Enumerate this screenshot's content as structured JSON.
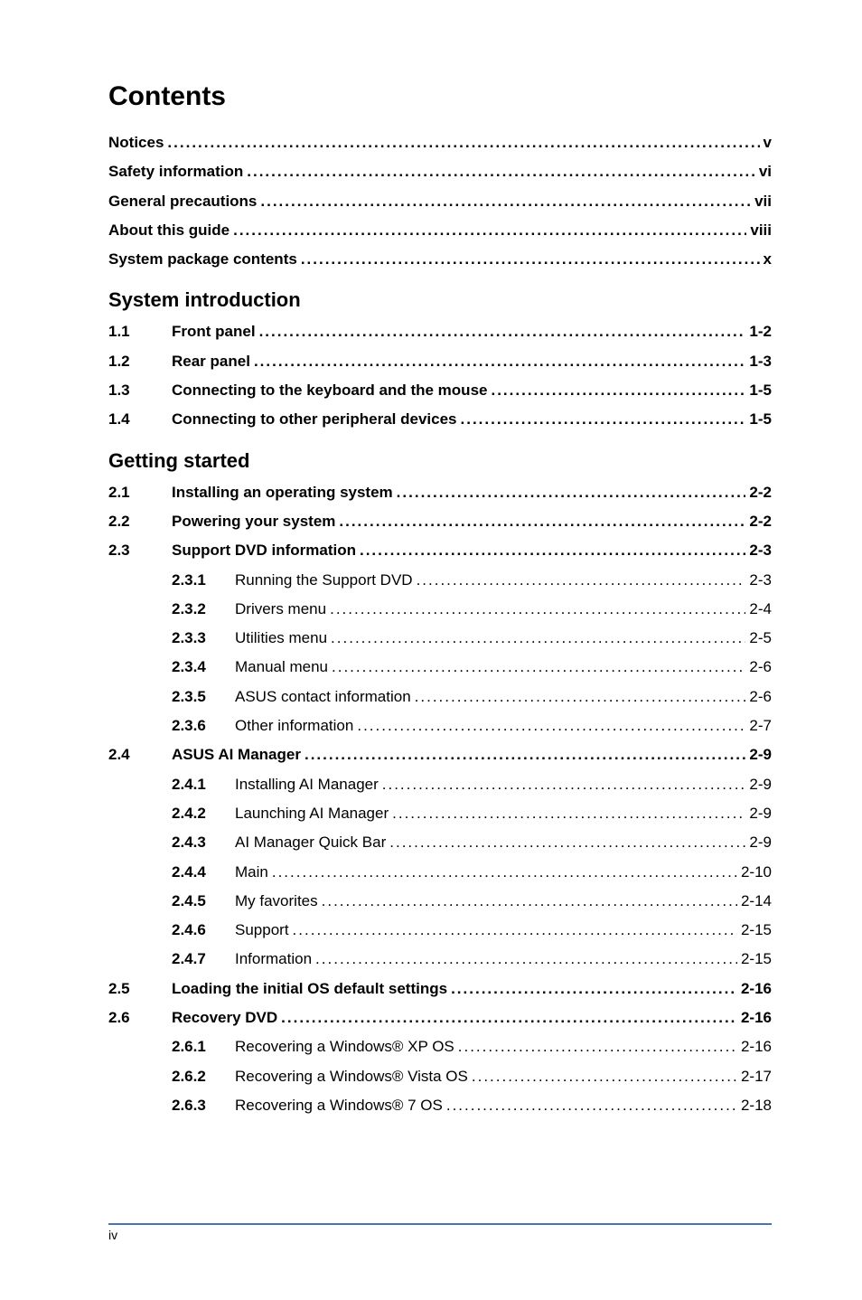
{
  "title": "Contents",
  "front_matter": [
    {
      "label": "Notices",
      "page": "v"
    },
    {
      "label": "Safety information",
      "page": "vi"
    },
    {
      "label": "General precautions",
      "page": "vii"
    },
    {
      "label": "About this guide",
      "page": "viii"
    },
    {
      "label": "System package contents",
      "page": "x"
    }
  ],
  "sections": [
    {
      "heading": "System introduction",
      "entries": [
        {
          "num": "1.1",
          "label": "Front panel",
          "page": "1-2",
          "bold": true
        },
        {
          "num": "1.2",
          "label": "Rear panel",
          "page": "1-3",
          "bold": true
        },
        {
          "num": "1.3",
          "label": "Connecting to the keyboard and the mouse",
          "page": "1-5",
          "bold": true
        },
        {
          "num": "1.4",
          "label": "Connecting to other peripheral devices",
          "page": "1-5",
          "bold": true
        }
      ]
    },
    {
      "heading": "Getting started",
      "entries": [
        {
          "num": "2.1",
          "label": "Installing an operating system",
          "page": "2-2",
          "bold": true
        },
        {
          "num": "2.2",
          "label": "Powering your system",
          "page": "2-2",
          "bold": true
        },
        {
          "num": "2.3",
          "label": "Support DVD information",
          "page": "2-3",
          "bold": true
        },
        {
          "num": "2.3.1",
          "label": "Running the Support DVD",
          "page": "2-3",
          "bold": false,
          "sub": true
        },
        {
          "num": "2.3.2",
          "label": "Drivers menu",
          "page": "2-4",
          "bold": false,
          "sub": true
        },
        {
          "num": "2.3.3",
          "label": "Utilities menu",
          "page": "2-5",
          "bold": false,
          "sub": true
        },
        {
          "num": "2.3.4",
          "label": "Manual menu",
          "page": "2-6",
          "bold": false,
          "sub": true
        },
        {
          "num": "2.3.5",
          "label": "ASUS contact information",
          "page": "2-6",
          "bold": false,
          "sub": true
        },
        {
          "num": "2.3.6",
          "label": "Other information",
          "page": "2-7",
          "bold": false,
          "sub": true
        },
        {
          "num": "2.4",
          "label": "ASUS AI Manager",
          "page": "2-9",
          "bold": true
        },
        {
          "num": "2.4.1",
          "label": "Installing AI Manager",
          "page": "2-9",
          "bold": false,
          "sub": true
        },
        {
          "num": "2.4.2",
          "label": "Launching AI Manager",
          "page": "2-9",
          "bold": false,
          "sub": true
        },
        {
          "num": "2.4.3",
          "label": "AI Manager Quick Bar",
          "page": "2-9",
          "bold": false,
          "sub": true
        },
        {
          "num": "2.4.4",
          "label": "Main",
          "page": "2-10",
          "bold": false,
          "sub": true
        },
        {
          "num": "2.4.5",
          "label": "My favorites",
          "page": "2-14",
          "bold": false,
          "sub": true
        },
        {
          "num": "2.4.6",
          "label": "Support",
          "page": "2-15",
          "bold": false,
          "sub": true
        },
        {
          "num": "2.4.7",
          "label": "Information",
          "page": "2-15",
          "bold": false,
          "sub": true
        },
        {
          "num": "2.5",
          "label": "Loading the initial OS default settings",
          "page": "2-16",
          "bold": true
        },
        {
          "num": "2.6",
          "label": "Recovery DVD",
          "page": "2-16",
          "bold": true
        },
        {
          "num": "2.6.1",
          "label": "Recovering a Windows® XP OS",
          "page": "2-16",
          "bold": false,
          "sub": true
        },
        {
          "num": "2.6.2",
          "label": "Recovering a Windows® Vista OS",
          "page": "2-17",
          "bold": false,
          "sub": true
        },
        {
          "num": "2.6.3",
          "label": "Recovering a Windows® 7 OS",
          "page": "2-18",
          "bold": false,
          "sub": true
        }
      ]
    }
  ],
  "footer": {
    "page_number": "iv",
    "rule_color": "#4a73b0"
  },
  "typography": {
    "title_fontsize": 30,
    "body_fontsize": 17,
    "heading_fontsize": 22,
    "footer_fontsize": 14,
    "line_height": 1.9
  },
  "colors": {
    "background": "#ffffff",
    "text": "#000000",
    "rule": "#4a73b0"
  }
}
